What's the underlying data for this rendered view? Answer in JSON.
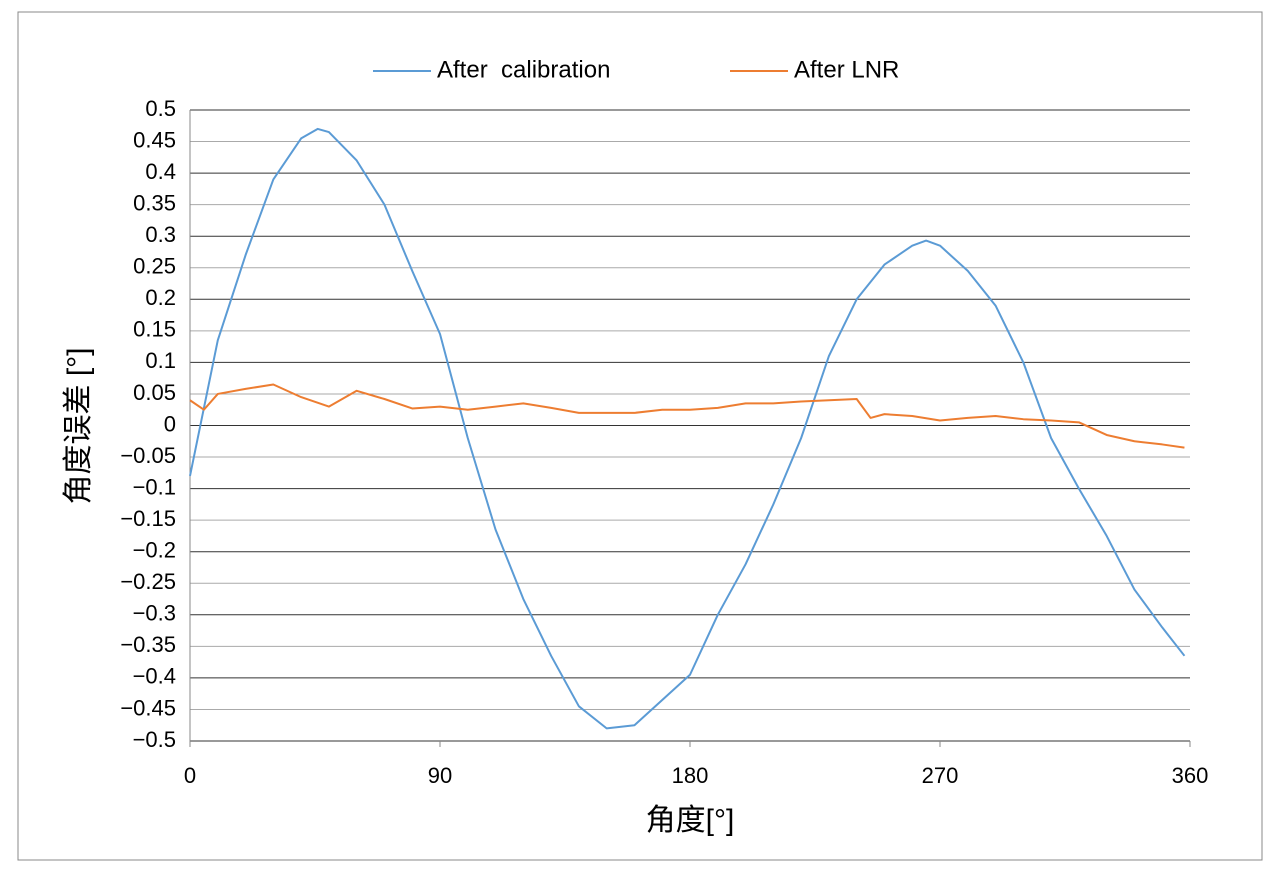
{
  "chart_data": {
    "type": "line",
    "xlabel": "角度[°]",
    "ylabel": "角度误差 [°]",
    "xlim": [
      0,
      360
    ],
    "xticks": [
      0,
      90,
      180,
      270,
      360
    ],
    "ylim": [
      -0.5,
      0.5
    ],
    "yticks": [
      {
        "value": -0.5,
        "label": "−0.5"
      },
      {
        "value": -0.45,
        "label": "−0.45"
      },
      {
        "value": -0.4,
        "label": "−0.4"
      },
      {
        "value": -0.35,
        "label": "−0.35"
      },
      {
        "value": -0.3,
        "label": "−0.3"
      },
      {
        "value": -0.25,
        "label": "−0.25"
      },
      {
        "value": -0.2,
        "label": "−0.2"
      },
      {
        "value": -0.15,
        "label": "−0.15"
      },
      {
        "value": -0.1,
        "label": "−0.1"
      },
      {
        "value": -0.05,
        "label": "−0.05"
      },
      0,
      0.05,
      0.1,
      0.15,
      0.2,
      0.25,
      0.3,
      0.35,
      0.4,
      0.45,
      0.5
    ],
    "grid": true,
    "legend": "top",
    "series": [
      {
        "name": "After  calibration",
        "color": "#5b9bd5",
        "x": [
          0,
          10,
          20,
          30,
          40,
          46,
          50,
          60,
          70,
          80,
          90,
          100,
          110,
          120,
          130,
          140,
          150,
          160,
          170,
          180,
          190,
          200,
          210,
          220,
          230,
          240,
          250,
          260,
          265,
          270,
          280,
          290,
          300,
          310,
          320,
          330,
          340,
          350,
          358
        ],
        "values": [
          -0.08,
          0.135,
          0.27,
          0.39,
          0.455,
          0.47,
          0.465,
          0.42,
          0.35,
          0.245,
          0.145,
          -0.02,
          -0.165,
          -0.275,
          -0.365,
          -0.445,
          -0.48,
          -0.475,
          -0.435,
          -0.395,
          -0.3,
          -0.22,
          -0.125,
          -0.02,
          0.11,
          0.2,
          0.255,
          0.285,
          0.293,
          0.285,
          0.245,
          0.19,
          0.1,
          -0.02,
          -0.1,
          -0.175,
          -0.26,
          -0.32,
          -0.365
        ]
      },
      {
        "name": "After LNR",
        "color": "#ed7d31",
        "x": [
          0,
          5,
          10,
          20,
          30,
          40,
          50,
          60,
          70,
          80,
          90,
          100,
          110,
          120,
          130,
          140,
          150,
          160,
          170,
          180,
          190,
          200,
          210,
          220,
          230,
          240,
          245,
          250,
          260,
          270,
          280,
          290,
          300,
          310,
          320,
          330,
          340,
          350,
          358
        ],
        "values": [
          0.04,
          0.025,
          0.05,
          0.058,
          0.065,
          0.045,
          0.03,
          0.055,
          0.042,
          0.027,
          0.03,
          0.025,
          0.03,
          0.035,
          0.028,
          0.02,
          0.02,
          0.02,
          0.025,
          0.025,
          0.028,
          0.035,
          0.035,
          0.038,
          0.04,
          0.042,
          0.012,
          0.018,
          0.015,
          0.008,
          0.012,
          0.015,
          0.01,
          0.008,
          0.005,
          -0.015,
          -0.025,
          -0.03,
          -0.035
        ]
      }
    ]
  }
}
